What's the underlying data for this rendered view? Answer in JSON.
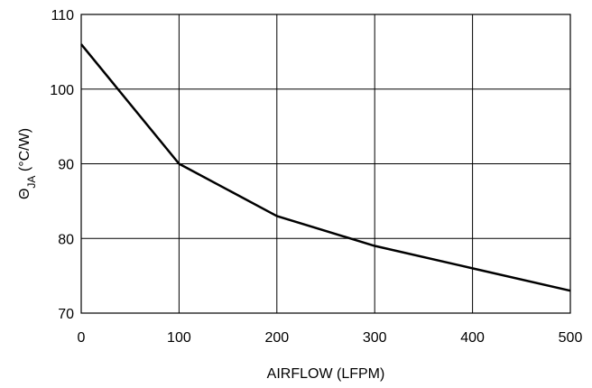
{
  "chart_data": {
    "type": "line",
    "title": "",
    "xlabel": "AIRFLOW (LFPM)",
    "ylabel": {
      "symbol": "Θ",
      "subscript": "JA",
      "unit": " (°C/W)"
    },
    "xlim": [
      0,
      500
    ],
    "ylim": [
      70,
      110
    ],
    "xticks": [
      0,
      100,
      200,
      300,
      400,
      500
    ],
    "yticks": [
      70,
      80,
      90,
      100,
      110
    ],
    "grid": true,
    "series": [
      {
        "x": [
          0,
          100,
          200,
          300,
          400,
          500
        ],
        "y": [
          106,
          90,
          83,
          79,
          76,
          73
        ]
      }
    ],
    "colors": {
      "line": "#000000",
      "grid": "#000000",
      "background": "#ffffff"
    }
  }
}
